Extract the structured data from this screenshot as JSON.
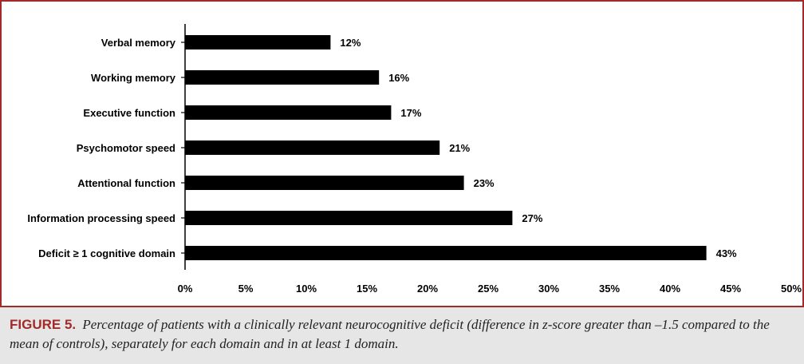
{
  "chart_data": {
    "type": "bar",
    "orientation": "horizontal",
    "categories": [
      "Verbal memory",
      "Working memory",
      "Executive function",
      "Psychomotor speed",
      "Attentional function",
      "Information processing speed",
      "Deficit ≥ 1 cognitive domain"
    ],
    "values": [
      12,
      16,
      17,
      21,
      23,
      27,
      43
    ],
    "data_labels": [
      "12%",
      "16%",
      "17%",
      "21%",
      "23%",
      "27%",
      "43%"
    ],
    "x_ticks": [
      "0%",
      "5%",
      "10%",
      "15%",
      "20%",
      "25%",
      "30%",
      "35%",
      "40%",
      "45%",
      "50%"
    ],
    "xlim": [
      0,
      50
    ],
    "bar_color": "#000000",
    "grid": false
  },
  "caption": {
    "label": "FIGURE 5.",
    "text": "Percentage of patients with a clinically relevant neurocognitive deficit (difference in z-score greater than –1.5 compared to the mean of controls), separately for each domain and in at least 1 domain."
  },
  "colors": {
    "frame": "#a32a2a",
    "caption_bg": "#e6e6e6"
  }
}
